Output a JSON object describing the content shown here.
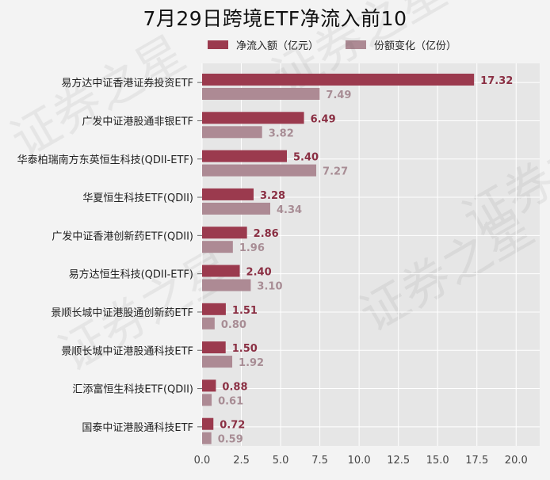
{
  "chart_data": {
    "type": "bar",
    "orientation": "horizontal",
    "title": "7月29日跨境ETF净流入前10",
    "categories": [
      "易方达中证香港证券投资ETF",
      "广发中证港股通非银ETF",
      "华泰柏瑞南方东英恒生科技(QDII-ETF)",
      "华夏恒生科技ETF(QDII)",
      "广发中证香港创新药ETF(QDII)",
      "易方达恒生科技(QDII-ETF)",
      "景顺长城中证港股通创新药ETF",
      "景顺长城中证港股通科技ETF",
      "汇添富恒生科技ETF(QDII)",
      "国泰中证港股通科技ETF"
    ],
    "series": [
      {
        "name": "净流入额（亿元）",
        "color": "#9b3a4e",
        "label_color": "#8a2f43",
        "values": [
          17.32,
          6.49,
          5.4,
          3.28,
          2.86,
          2.4,
          1.51,
          1.5,
          0.88,
          0.72
        ]
      },
      {
        "name": "份额变化（亿份）",
        "color": "#ad8a94",
        "label_color": "#a88d95",
        "values": [
          7.49,
          3.82,
          7.27,
          4.34,
          1.96,
          3.1,
          0.8,
          1.92,
          0.61,
          0.59
        ]
      }
    ],
    "value_labels": {
      "s0": [
        "17.32",
        "6.49",
        "5.40",
        "3.28",
        "2.86",
        "2.40",
        "1.51",
        "1.50",
        "0.88",
        "0.72"
      ],
      "s1": [
        "7.49",
        "3.82",
        "7.27",
        "4.34",
        "1.96",
        "3.10",
        "0.80",
        "1.92",
        "0.61",
        "0.59"
      ]
    },
    "xticks": [
      "0.0",
      "2.5",
      "5.0",
      "7.5",
      "10.0",
      "12.5",
      "15.0",
      "17.5",
      "20.0"
    ],
    "xlim": [
      0,
      21.5
    ],
    "grid": true,
    "legend_position": "top"
  },
  "watermark": "证券之星",
  "colors": {
    "plot_bg": "#e6e6e6",
    "grid": "#ffffff",
    "page_bg": "#f3f3f3"
  }
}
